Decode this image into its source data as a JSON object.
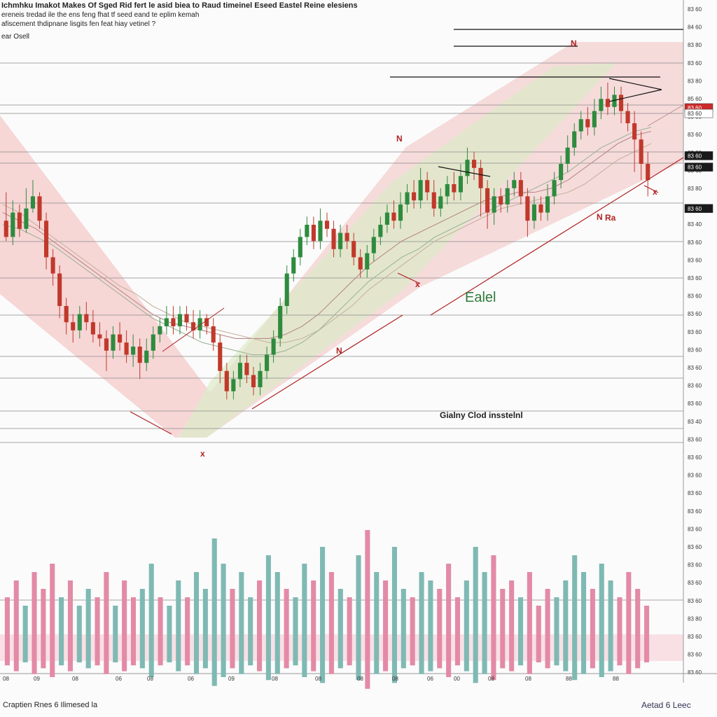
{
  "header": {
    "title": "Ichmhku Imakot Makes Of Sged Rid fert le asid biea to Raud timeinel Eseed Eastel Reine elesiens",
    "subtitle_lines": [
      "ereneis tredad ile the ens feng fhat tf seed eand te eplim kemah",
      "afiscement thdipnane lisgits fen feat hiay vetinel ?"
    ],
    "label": "ear Osell"
  },
  "annotations": {
    "cloud_label": "Ealel",
    "cloud_note": "Gialny Clod insstelnl",
    "marks": [
      "N",
      "N",
      "N",
      "N",
      "Ra",
      "x",
      "x",
      "x"
    ]
  },
  "footer": {
    "left": "Craptien Rnes 6 Ilimesed la",
    "right": "Aetad 6 Leec"
  },
  "chart_data": {
    "type": "candlestick",
    "title": "",
    "xlabel": "",
    "ylabel": "",
    "ylim": [
      0,
      100
    ],
    "y_tick_labels": [
      "83 60",
      "84 60",
      "83 80",
      "83 60",
      "83 80",
      "85 60",
      "83 80",
      "83 60",
      "83 80",
      "83 60",
      "83 80",
      "83 60",
      "83 40",
      "83 60",
      "83 60",
      "83 60",
      "83 60",
      "83 60",
      "83 60",
      "83 60",
      "83 60",
      "83 60",
      "83 60",
      "83 40",
      "83 60",
      "83 60",
      "83 60",
      "83 60",
      "83 60",
      "83 60",
      "83 60",
      "83 60",
      "83 60",
      "83 60",
      "83 80",
      "83 60",
      "83 60",
      "83 60"
    ],
    "price_tags": [
      {
        "text": "83 60",
        "y": 83.8,
        "color": "#cc2a2a"
      },
      {
        "text": "83 60",
        "y": 82.4,
        "color": "#ffffff"
      },
      {
        "text": "83 60",
        "y": 72.0,
        "color": "#1a1a1a"
      },
      {
        "text": "83 60",
        "y": 69.2,
        "color": "#1a1a1a"
      },
      {
        "text": "83 60",
        "y": 59.0,
        "color": "#1a1a1a"
      }
    ],
    "x_tick_labels": [
      "08",
      "09",
      "08",
      "06",
      "08",
      "06",
      "09",
      "08",
      "08",
      "08",
      "08",
      "06",
      "00",
      "08",
      "08",
      "88",
      "88"
    ],
    "candles": [
      [
        56,
        52,
        63,
        51
      ],
      [
        52,
        58,
        61,
        50
      ],
      [
        58,
        54,
        60,
        52
      ],
      [
        54,
        59,
        64,
        53
      ],
      [
        59,
        62,
        66,
        58
      ],
      [
        62,
        56,
        63,
        54
      ],
      [
        56,
        47,
        58,
        44
      ],
      [
        47,
        43,
        49,
        40
      ],
      [
        43,
        35,
        45,
        32
      ],
      [
        35,
        31,
        37,
        28
      ],
      [
        31,
        29,
        33,
        26
      ],
      [
        29,
        33,
        35,
        27
      ],
      [
        33,
        31,
        36,
        29
      ],
      [
        31,
        28,
        34,
        26
      ],
      [
        28,
        27,
        31,
        25
      ],
      [
        27,
        24,
        29,
        19
      ],
      [
        24,
        28,
        30,
        22
      ],
      [
        28,
        26,
        31,
        24
      ],
      [
        26,
        23,
        29,
        21
      ],
      [
        23,
        25,
        28,
        20
      ],
      [
        25,
        21,
        27,
        17
      ],
      [
        21,
        24,
        27,
        19
      ],
      [
        24,
        28,
        30,
        22
      ],
      [
        28,
        30,
        32,
        26
      ],
      [
        30,
        32,
        35,
        28
      ],
      [
        32,
        30,
        35,
        28
      ],
      [
        30,
        33,
        35,
        28
      ],
      [
        33,
        31,
        35,
        29
      ],
      [
        31,
        29,
        34,
        27
      ],
      [
        29,
        32,
        34,
        27
      ],
      [
        32,
        30,
        33,
        28
      ],
      [
        30,
        26,
        32,
        24
      ],
      [
        26,
        19,
        28,
        16
      ],
      [
        19,
        14,
        21,
        12
      ],
      [
        14,
        17,
        19,
        12
      ],
      [
        17,
        21,
        23,
        15
      ],
      [
        21,
        18,
        23,
        16
      ],
      [
        18,
        15,
        20,
        13
      ],
      [
        15,
        19,
        21,
        13
      ],
      [
        19,
        23,
        25,
        17
      ],
      [
        23,
        27,
        29,
        21
      ],
      [
        27,
        35,
        37,
        25
      ],
      [
        35,
        43,
        45,
        33
      ],
      [
        43,
        47,
        49,
        41
      ],
      [
        47,
        52,
        54,
        45
      ],
      [
        52,
        55,
        57,
        50
      ],
      [
        55,
        51,
        57,
        49
      ],
      [
        51,
        56,
        59,
        49
      ],
      [
        56,
        54,
        58,
        52
      ],
      [
        54,
        49,
        56,
        47
      ],
      [
        49,
        53,
        55,
        47
      ],
      [
        53,
        51,
        55,
        49
      ],
      [
        51,
        47,
        53,
        45
      ],
      [
        47,
        44,
        49,
        42
      ],
      [
        44,
        48,
        50,
        42
      ],
      [
        48,
        52,
        54,
        46
      ],
      [
        52,
        55,
        57,
        50
      ],
      [
        55,
        58,
        60,
        53
      ],
      [
        58,
        56,
        61,
        54
      ],
      [
        56,
        60,
        63,
        54
      ],
      [
        60,
        63,
        65,
        58
      ],
      [
        63,
        61,
        66,
        59
      ],
      [
        61,
        66,
        69,
        59
      ],
      [
        66,
        63,
        68,
        61
      ],
      [
        63,
        59,
        66,
        57
      ],
      [
        59,
        62,
        64,
        57
      ],
      [
        62,
        65,
        67,
        60
      ],
      [
        65,
        63,
        68,
        61
      ],
      [
        63,
        67,
        70,
        61
      ],
      [
        67,
        71,
        74,
        65
      ],
      [
        71,
        69,
        73,
        66
      ],
      [
        69,
        64,
        71,
        57
      ],
      [
        64,
        58,
        66,
        54
      ],
      [
        58,
        62,
        64,
        55
      ],
      [
        62,
        60,
        64,
        58
      ],
      [
        60,
        64,
        66,
        58
      ],
      [
        64,
        66,
        68,
        62
      ],
      [
        66,
        62,
        68,
        60
      ],
      [
        62,
        56,
        64,
        52
      ],
      [
        56,
        60,
        62,
        54
      ],
      [
        60,
        58,
        62,
        56
      ],
      [
        58,
        62,
        65,
        56
      ],
      [
        62,
        66,
        68,
        60
      ],
      [
        66,
        70,
        72,
        64
      ],
      [
        70,
        74,
        77,
        68
      ],
      [
        74,
        78,
        80,
        72
      ],
      [
        78,
        81,
        83,
        76
      ],
      [
        81,
        79,
        84,
        77
      ],
      [
        79,
        83,
        86,
        77
      ],
      [
        83,
        86,
        89,
        81
      ],
      [
        86,
        84,
        90,
        82
      ],
      [
        84,
        87,
        89,
        82
      ],
      [
        87,
        83,
        89,
        80
      ],
      [
        83,
        80,
        85,
        78
      ],
      [
        80,
        76,
        83,
        68
      ],
      [
        76,
        70,
        78,
        66
      ],
      [
        70,
        66,
        73,
        62
      ]
    ],
    "volume": [
      {
        "v": 6,
        "up": false
      },
      {
        "v": 8,
        "up": false
      },
      {
        "v": 5,
        "up": true
      },
      {
        "v": 9,
        "up": false
      },
      {
        "v": 7,
        "up": false
      },
      {
        "v": 10,
        "up": false
      },
      {
        "v": 6,
        "up": true
      },
      {
        "v": 8,
        "up": false
      },
      {
        "v": 5,
        "up": true
      },
      {
        "v": 7,
        "up": true
      },
      {
        "v": 6,
        "up": false
      },
      {
        "v": 9,
        "up": false
      },
      {
        "v": 5,
        "up": true
      },
      {
        "v": 8,
        "up": false
      },
      {
        "v": 6,
        "up": false
      },
      {
        "v": 7,
        "up": true
      },
      {
        "v": 10,
        "up": true
      },
      {
        "v": 6,
        "up": false
      },
      {
        "v": 5,
        "up": true
      },
      {
        "v": 8,
        "up": true
      },
      {
        "v": 6,
        "up": false
      },
      {
        "v": 9,
        "up": true
      },
      {
        "v": 7,
        "up": true
      },
      {
        "v": 13,
        "up": true
      },
      {
        "v": 10,
        "up": true
      },
      {
        "v": 7,
        "up": false
      },
      {
        "v": 9,
        "up": true
      },
      {
        "v": 6,
        "up": true
      },
      {
        "v": 8,
        "up": false
      },
      {
        "v": 11,
        "up": true
      },
      {
        "v": 9,
        "up": true
      },
      {
        "v": 7,
        "up": false
      },
      {
        "v": 6,
        "up": true
      },
      {
        "v": 10,
        "up": true
      },
      {
        "v": 8,
        "up": false
      },
      {
        "v": 12,
        "up": true
      },
      {
        "v": 9,
        "up": false
      },
      {
        "v": 7,
        "up": true
      },
      {
        "v": 6,
        "up": false
      },
      {
        "v": 11,
        "up": true
      },
      {
        "v": 14,
        "up": false
      },
      {
        "v": 9,
        "up": true
      },
      {
        "v": 8,
        "up": false
      },
      {
        "v": 12,
        "up": true
      },
      {
        "v": 7,
        "up": true
      },
      {
        "v": 6,
        "up": false
      },
      {
        "v": 9,
        "up": true
      },
      {
        "v": 8,
        "up": true
      },
      {
        "v": 7,
        "up": false
      },
      {
        "v": 10,
        "up": false
      },
      {
        "v": 6,
        "up": false
      },
      {
        "v": 8,
        "up": true
      },
      {
        "v": 12,
        "up": true
      },
      {
        "v": 9,
        "up": true
      },
      {
        "v": 11,
        "up": false
      },
      {
        "v": 7,
        "up": false
      },
      {
        "v": 8,
        "up": false
      },
      {
        "v": 6,
        "up": true
      },
      {
        "v": 9,
        "up": false
      },
      {
        "v": 5,
        "up": false
      },
      {
        "v": 7,
        "up": false
      },
      {
        "v": 6,
        "up": true
      },
      {
        "v": 8,
        "up": true
      },
      {
        "v": 11,
        "up": true
      },
      {
        "v": 9,
        "up": true
      },
      {
        "v": 7,
        "up": false
      },
      {
        "v": 10,
        "up": true
      },
      {
        "v": 8,
        "up": true
      },
      {
        "v": 6,
        "up": false
      },
      {
        "v": 9,
        "up": false
      },
      {
        "v": 7,
        "up": false
      },
      {
        "v": 5,
        "up": false
      }
    ],
    "moving_averages": [
      {
        "color": "#b88a8a",
        "values": [
          58,
          56,
          54,
          51,
          48,
          45,
          42,
          39,
          36,
          33,
          31,
          30,
          29,
          28,
          27,
          27,
          27,
          28,
          30,
          33,
          37,
          41,
          45,
          48,
          51,
          53,
          55,
          57,
          59,
          61,
          62,
          63,
          63,
          64,
          66,
          69,
          72,
          75,
          77,
          78
        ]
      },
      {
        "color": "#c7b3a0",
        "values": [
          60,
          58,
          55,
          52,
          49,
          46,
          43,
          40,
          38,
          35,
          33,
          31,
          30,
          29,
          28,
          27,
          26,
          26,
          27,
          29,
          32,
          35,
          39,
          42,
          45,
          48,
          51,
          53,
          55,
          57,
          59,
          60,
          61,
          62,
          63,
          65,
          68,
          71,
          73,
          75
        ]
      },
      {
        "color": "#9fb49a",
        "values": [
          55,
          54,
          52,
          50,
          47,
          44,
          41,
          38,
          35,
          32,
          30,
          28,
          26,
          25,
          24,
          23,
          23,
          24,
          26,
          29,
          33,
          37,
          41,
          44,
          47,
          49,
          52,
          54,
          56,
          58,
          60,
          62,
          64,
          66,
          68,
          71,
          74,
          76,
          78,
          79
        ]
      }
    ]
  }
}
